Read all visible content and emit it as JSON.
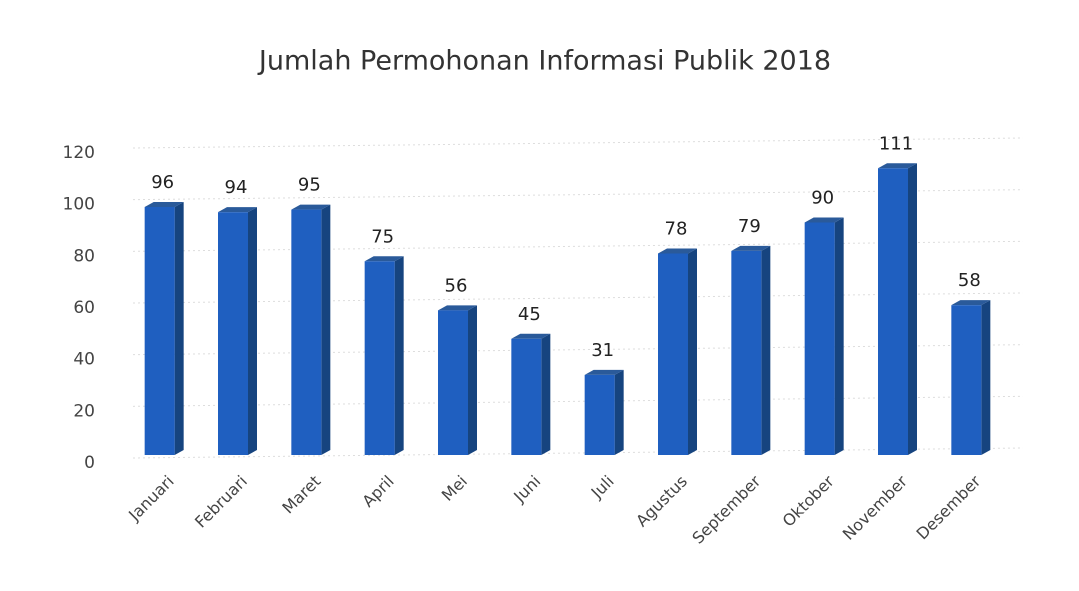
{
  "chart_data": {
    "type": "bar",
    "title": "Jumlah Permohonan Informasi Publik 2018",
    "categories": [
      "Januari",
      "Februari",
      "Maret",
      "April",
      "Mei",
      "Juni",
      "Juli",
      "Agustus",
      "September",
      "Oktober",
      "November",
      "Desember"
    ],
    "values": [
      96,
      94,
      95,
      75,
      56,
      45,
      31,
      78,
      79,
      90,
      111,
      58
    ],
    "color": "#1f5fc0",
    "ylim": [
      0,
      120
    ],
    "yticks": [
      0,
      20,
      40,
      60,
      80,
      100,
      120
    ],
    "grid": true
  }
}
